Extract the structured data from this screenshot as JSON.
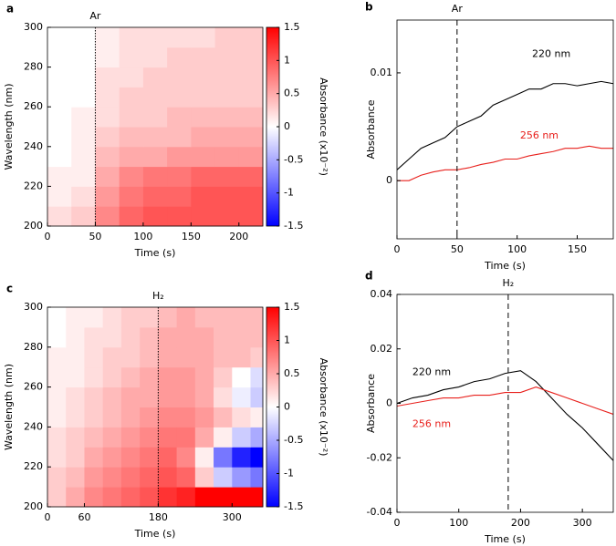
{
  "chart_data": [
    {
      "type": "heatmap",
      "label": "a",
      "xlabel": "Time (s)",
      "ylabel": "Wavelength (nm)",
      "xlim": [
        0,
        225
      ],
      "xticks": [
        0,
        50,
        100,
        150,
        200
      ],
      "ylim": [
        200,
        300
      ],
      "yticks": [
        200,
        220,
        240,
        260,
        280,
        300
      ],
      "xbins": [
        0,
        25,
        50,
        75,
        100,
        125,
        150,
        175,
        200,
        225
      ],
      "ybins": [
        200,
        210,
        220,
        230,
        240,
        250,
        260,
        270,
        280,
        290,
        300
      ],
      "z": [
        [
          0.2,
          0.3,
          0.7,
          0.9,
          1.0,
          1.0,
          1.0,
          1.0,
          1.0
        ],
        [
          0.1,
          0.2,
          0.6,
          0.8,
          0.9,
          0.9,
          1.0,
          1.0,
          1.0
        ],
        [
          0.1,
          0.1,
          0.5,
          0.7,
          0.8,
          0.8,
          0.9,
          0.9,
          0.9
        ],
        [
          0,
          0.1,
          0.4,
          0.5,
          0.5,
          0.6,
          0.6,
          0.6,
          0.6
        ],
        [
          0,
          0.1,
          0.3,
          0.4,
          0.4,
          0.4,
          0.5,
          0.5,
          0.5
        ],
        [
          0,
          0.1,
          0.2,
          0.3,
          0.3,
          0.4,
          0.4,
          0.4,
          0.4
        ],
        [
          0,
          0,
          0.2,
          0.3,
          0.3,
          0.3,
          0.3,
          0.3,
          0.3
        ],
        [
          0,
          0,
          0.2,
          0.2,
          0.3,
          0.3,
          0.3,
          0.3,
          0.3
        ],
        [
          0,
          0,
          0.1,
          0.2,
          0.2,
          0.3,
          0.3,
          0.3,
          0.3
        ],
        [
          0,
          0,
          0.1,
          0.2,
          0.2,
          0.2,
          0.2,
          0.3,
          0.3
        ]
      ],
      "colorbar": {
        "label": "Absorbance (x10⁻²)",
        "lim": [
          -1.5,
          1.5
        ],
        "ticks": [
          -1.5,
          -1,
          -0.5,
          0,
          0.5,
          1,
          1.5
        ]
      },
      "annotations": [
        {
          "text": "Ar",
          "x": 50
        }
      ]
    },
    {
      "type": "line",
      "label": "b",
      "xlabel": "Time (s)",
      "ylabel": "Absorbance",
      "xlim": [
        0,
        180
      ],
      "xticks": [
        0,
        50,
        100,
        150
      ],
      "ylim": [
        -0.0054,
        0.0149
      ],
      "yticks": [
        0,
        0.01
      ],
      "x": [
        0,
        10,
        20,
        30,
        40,
        50,
        60,
        70,
        80,
        90,
        100,
        110,
        120,
        130,
        140,
        150,
        160,
        170,
        180
      ],
      "series": [
        {
          "name": "220 nm",
          "color": "#000000",
          "values": [
            0.001,
            0.002,
            0.003,
            0.0035,
            0.004,
            0.005,
            0.0055,
            0.006,
            0.007,
            0.0075,
            0.008,
            0.0085,
            0.0085,
            0.009,
            0.009,
            0.0088,
            0.009,
            0.0092,
            0.009
          ]
        },
        {
          "name": "256 nm",
          "color": "#e8201c",
          "values": [
            0.0,
            0.0,
            0.0005,
            0.0008,
            0.001,
            0.001,
            0.0012,
            0.0015,
            0.0017,
            0.002,
            0.002,
            0.0023,
            0.0025,
            0.0027,
            0.003,
            0.003,
            0.0032,
            0.003,
            0.003
          ]
        }
      ],
      "annotations": [
        {
          "text": "Ar",
          "x": 50
        }
      ]
    },
    {
      "type": "heatmap",
      "label": "c",
      "xlabel": "Time (s)",
      "ylabel": "Wavelength (nm)",
      "xlim": [
        0,
        350
      ],
      "xticks": [
        0,
        60,
        180,
        300
      ],
      "ylim": [
        200,
        300
      ],
      "yticks": [
        200,
        220,
        240,
        260,
        280,
        300
      ],
      "xbins": [
        0,
        30,
        60,
        90,
        120,
        150,
        180,
        210,
        240,
        270,
        300,
        330,
        350
      ],
      "ybins": [
        200,
        210,
        220,
        230,
        240,
        250,
        260,
        270,
        280,
        290,
        300
      ],
      "z": [
        [
          0.3,
          0.5,
          0.7,
          0.8,
          0.9,
          1.0,
          1.2,
          1.3,
          1.5,
          1.5,
          1.5,
          1.5
        ],
        [
          0.3,
          0.4,
          0.6,
          0.7,
          0.8,
          0.9,
          1.0,
          0.9,
          0.3,
          -0.3,
          -0.6,
          -0.8
        ],
        [
          0.2,
          0.3,
          0.5,
          0.6,
          0.7,
          0.8,
          0.9,
          0.7,
          0.1,
          -0.8,
          -1.3,
          -1.5
        ],
        [
          0.2,
          0.3,
          0.4,
          0.5,
          0.6,
          0.7,
          0.8,
          0.8,
          0.5,
          0.1,
          -0.3,
          -0.5
        ],
        [
          0.1,
          0.2,
          0.3,
          0.4,
          0.5,
          0.6,
          0.7,
          0.7,
          0.6,
          0.4,
          0.2,
          0.1
        ],
        [
          0.1,
          0.2,
          0.3,
          0.4,
          0.5,
          0.5,
          0.6,
          0.6,
          0.5,
          0.2,
          -0.1,
          -0.3
        ],
        [
          0.1,
          0.1,
          0.2,
          0.3,
          0.4,
          0.5,
          0.6,
          0.6,
          0.5,
          0.3,
          0.0,
          -0.2
        ],
        [
          0.1,
          0.1,
          0.2,
          0.3,
          0.3,
          0.4,
          0.5,
          0.5,
          0.5,
          0.4,
          0.4,
          0.3
        ],
        [
          0,
          0.1,
          0.2,
          0.2,
          0.3,
          0.4,
          0.5,
          0.5,
          0.5,
          0.4,
          0.4,
          0.4
        ],
        [
          0,
          0.1,
          0.1,
          0.2,
          0.3,
          0.3,
          0.4,
          0.5,
          0.4,
          0.4,
          0.4,
          0.4
        ]
      ],
      "colorbar": {
        "label": "Absorbance (x10⁻²)",
        "lim": [
          -1.5,
          1.5
        ],
        "ticks": [
          -1.5,
          -1,
          -0.5,
          0,
          0.5,
          1,
          1.5
        ]
      },
      "annotations": [
        {
          "text": "H₂",
          "x": 180
        }
      ]
    },
    {
      "type": "line",
      "label": "d",
      "xlabel": "Time (s)",
      "ylabel": "Absorbance",
      "xlim": [
        0,
        350
      ],
      "xticks": [
        0,
        100,
        200,
        300
      ],
      "ylim": [
        -0.04,
        0.04
      ],
      "yticks": [
        -0.04,
        -0.02,
        0,
        0.02,
        0.04
      ],
      "x": [
        0,
        25,
        50,
        75,
        100,
        125,
        150,
        175,
        200,
        225,
        250,
        275,
        300,
        325,
        350
      ],
      "series": [
        {
          "name": "220 nm",
          "color": "#000000",
          "values": [
            0,
            0.002,
            0.003,
            0.005,
            0.006,
            0.008,
            0.009,
            0.011,
            0.012,
            0.008,
            0.002,
            -0.004,
            -0.009,
            -0.015,
            -0.021
          ]
        },
        {
          "name": "256 nm",
          "color": "#e8201c",
          "values": [
            -0.001,
            0,
            0.001,
            0.002,
            0.002,
            0.003,
            0.003,
            0.004,
            0.004,
            0.006,
            0.004,
            0.002,
            0,
            -0.002,
            -0.004
          ]
        }
      ],
      "annotations": [
        {
          "text": "H₂",
          "x": 180
        }
      ]
    }
  ]
}
